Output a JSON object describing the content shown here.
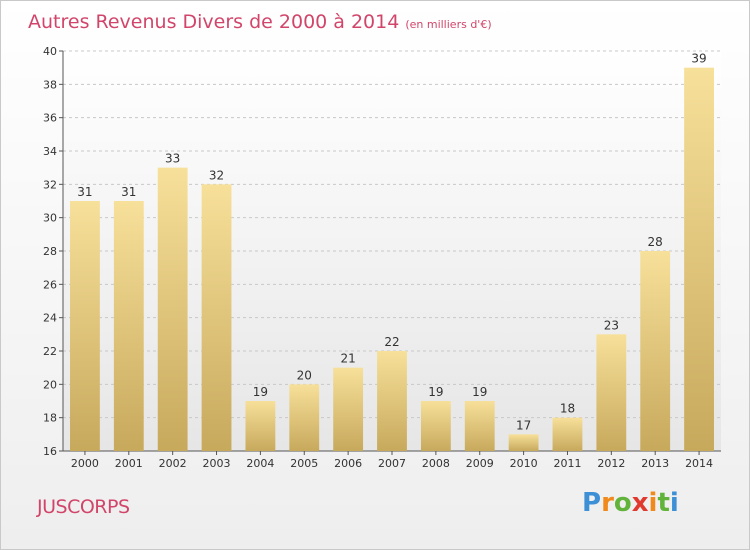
{
  "header": {
    "title": "Autres Revenus Divers de 2000 à 2014",
    "unit": "(en milliers d'€)"
  },
  "footer": {
    "place": "JUSCORPS",
    "brand": "Proxiti",
    "brand_colors": [
      "#3d8fd6",
      "#f08a1c",
      "#62b33c",
      "#e03a2e"
    ]
  },
  "colors": {
    "title": "#d2456a",
    "bar_top": "#f7e09a",
    "bar_bottom": "#c7a95c",
    "plot_bg_top": "#ffffff",
    "plot_bg_bottom": "#e6e6e6"
  },
  "chart_data": {
    "type": "bar",
    "title": "Autres Revenus Divers de 2000 à 2014",
    "subtitle": "(en milliers d'€)",
    "xlabel": "",
    "ylabel": "",
    "categories": [
      "2000",
      "2001",
      "2002",
      "2003",
      "2004",
      "2005",
      "2006",
      "2007",
      "2008",
      "2009",
      "2010",
      "2011",
      "2012",
      "2013",
      "2014"
    ],
    "values": [
      31,
      31,
      33,
      32,
      19,
      20,
      21,
      22,
      19,
      19,
      17,
      18,
      23,
      28,
      39
    ],
    "ylim": [
      16,
      40
    ],
    "yticks": [
      16,
      18,
      20,
      22,
      24,
      26,
      28,
      30,
      32,
      34,
      36,
      38,
      40
    ],
    "grid": true,
    "legend": "none"
  }
}
